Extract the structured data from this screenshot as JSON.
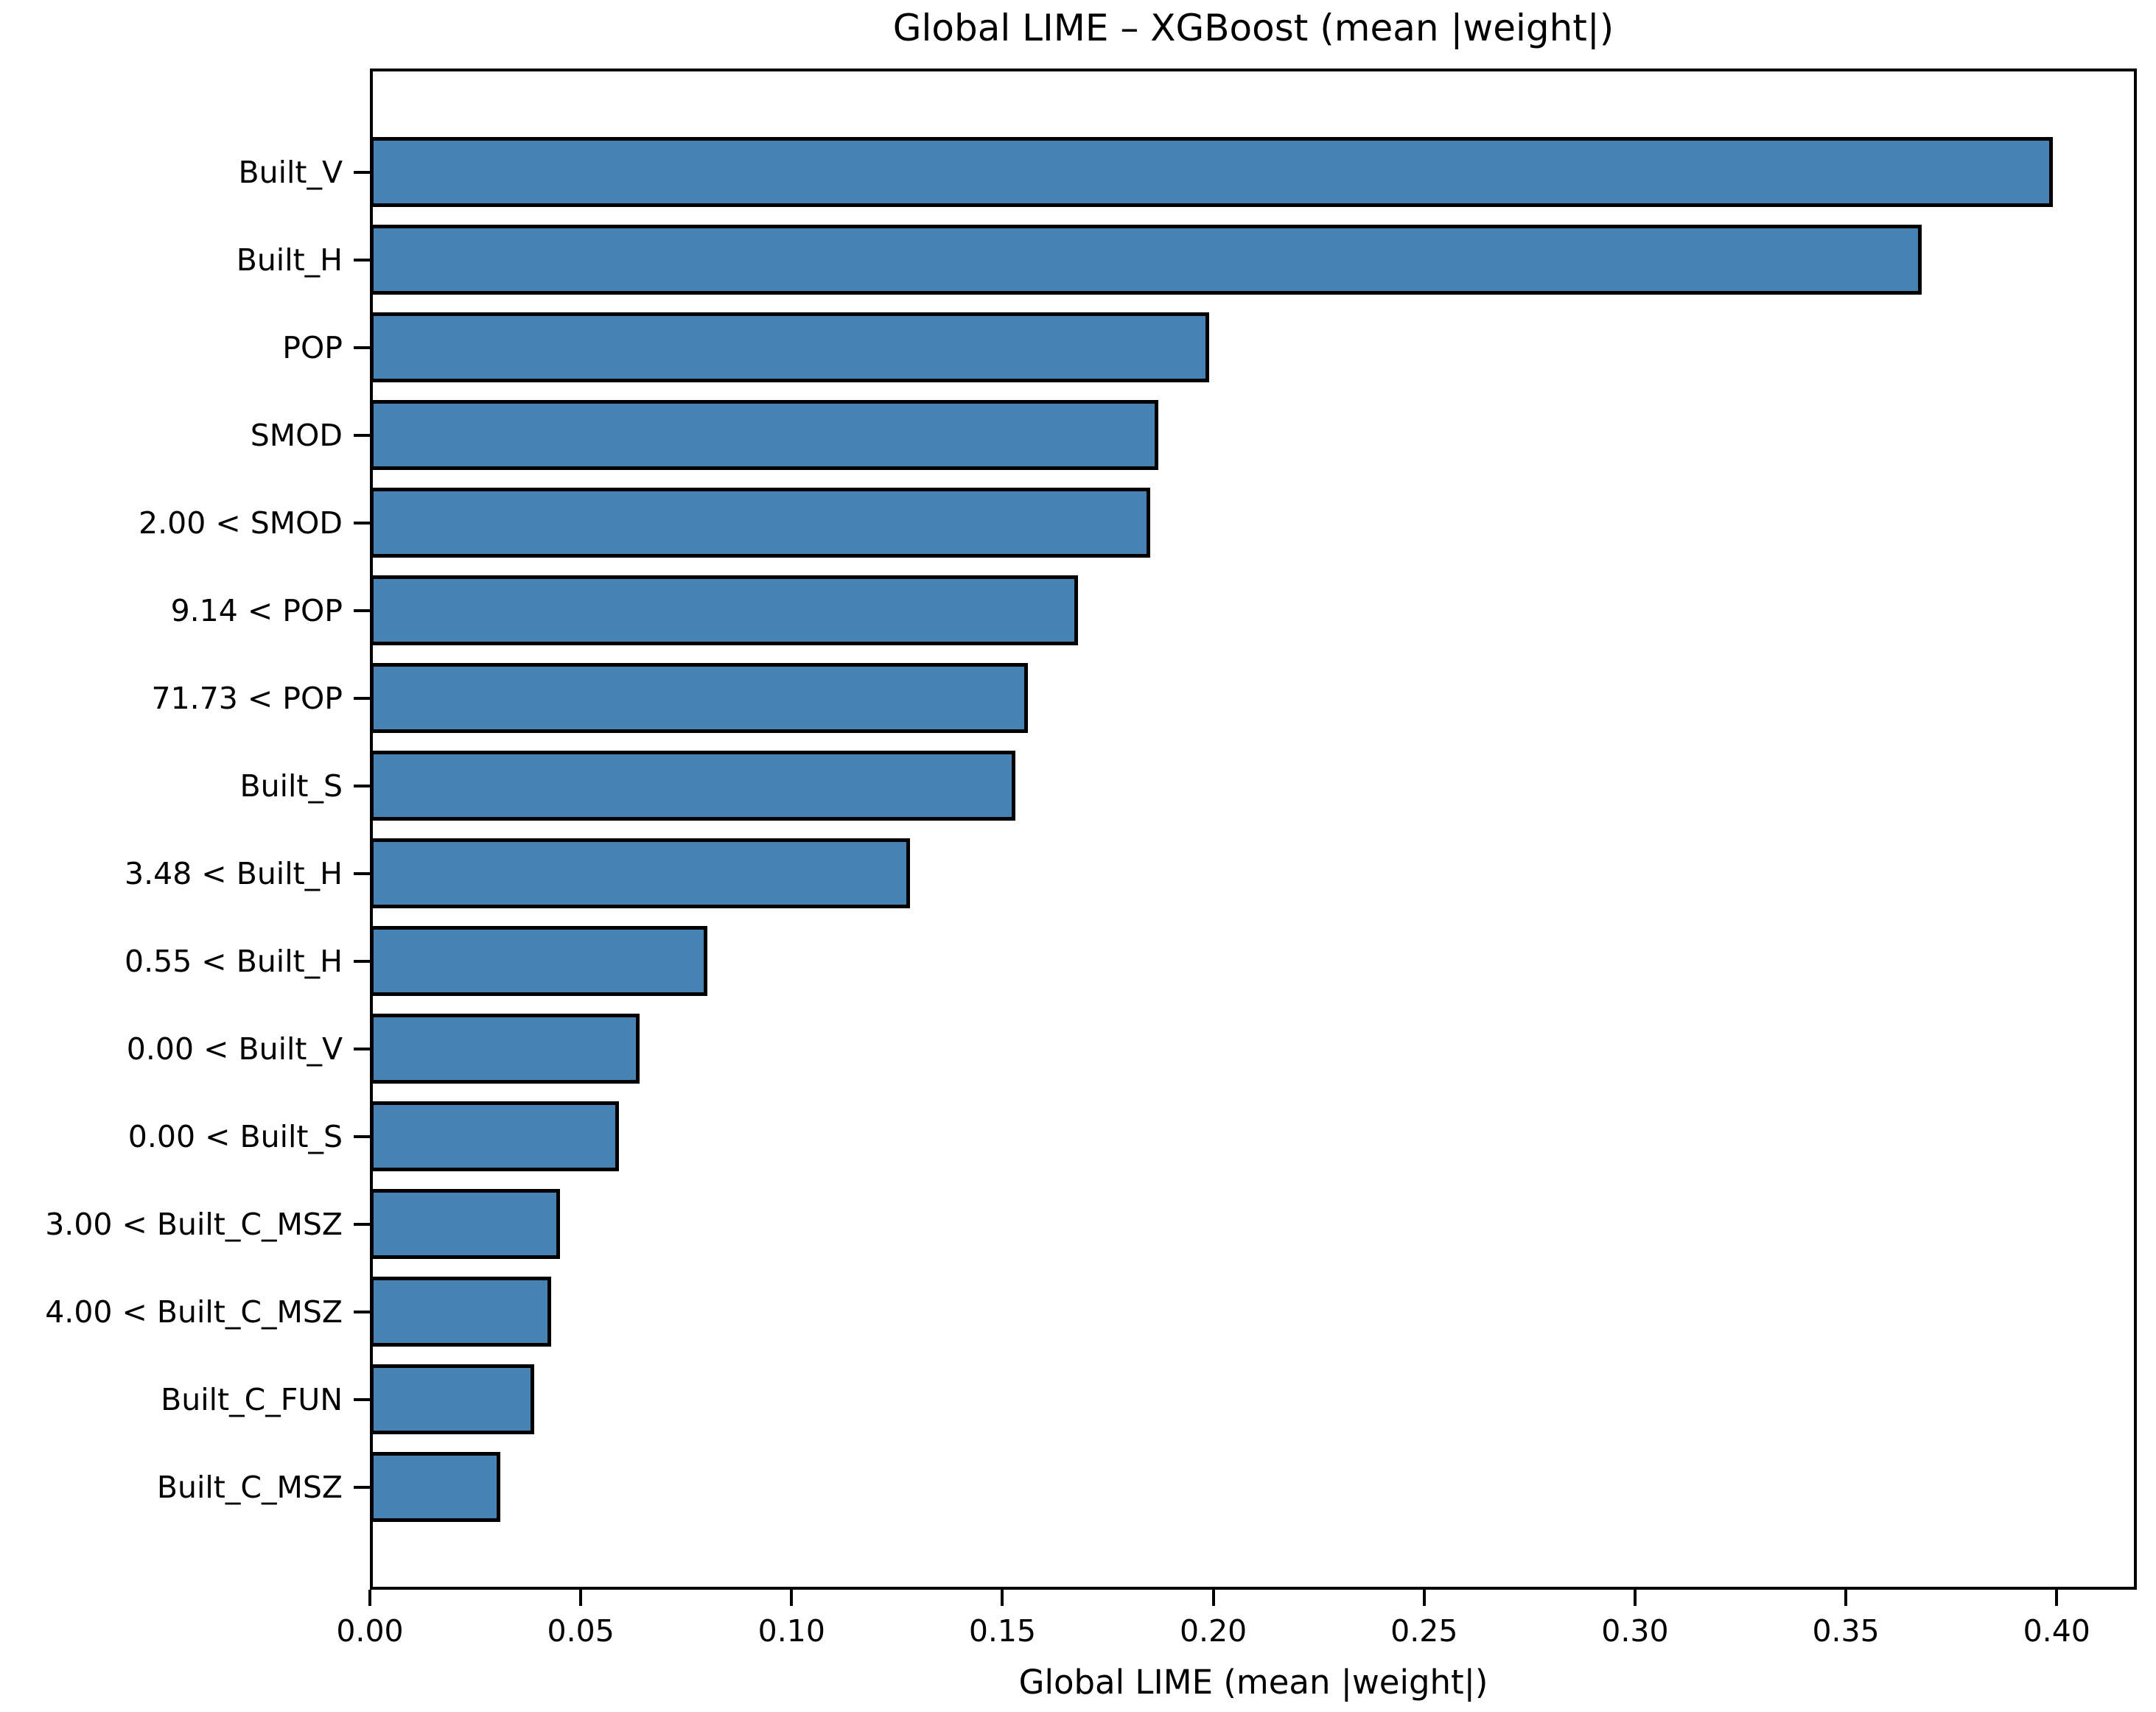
{
  "chart_data": {
    "type": "bar",
    "orientation": "horizontal",
    "title": "Global LIME – XGBoost (mean |weight|)",
    "xlabel": "Global LIME (mean |weight|)",
    "ylabel": "",
    "categories": [
      "Built_V",
      "Built_H",
      "POP",
      "SMOD",
      "2.00 < SMOD",
      "9.14 < POP",
      "71.73 < POP",
      "Built_S",
      "3.48 < Built_H",
      "0.55 < Built_H",
      "0.00 < Built_V",
      "0.00 < Built_S",
      "3.00 < Built_C_MSZ",
      "4.00 < Built_C_MSZ",
      "Built_C_FUN",
      "Built_C_MSZ"
    ],
    "values": [
      0.399,
      0.368,
      0.199,
      0.187,
      0.185,
      0.168,
      0.156,
      0.153,
      0.128,
      0.08,
      0.064,
      0.059,
      0.045,
      0.043,
      0.039,
      0.031
    ],
    "xlim": [
      0,
      0.419
    ],
    "xticks": [
      0.0,
      0.05,
      0.1,
      0.15,
      0.2,
      0.25,
      0.3,
      0.35,
      0.4
    ],
    "xtick_labels": [
      "0.00",
      "0.05",
      "0.10",
      "0.15",
      "0.20",
      "0.25",
      "0.30",
      "0.35",
      "0.40"
    ],
    "grid": false,
    "legend": null,
    "bar_color": "#4682b4",
    "bar_edge_color": "#000000"
  }
}
